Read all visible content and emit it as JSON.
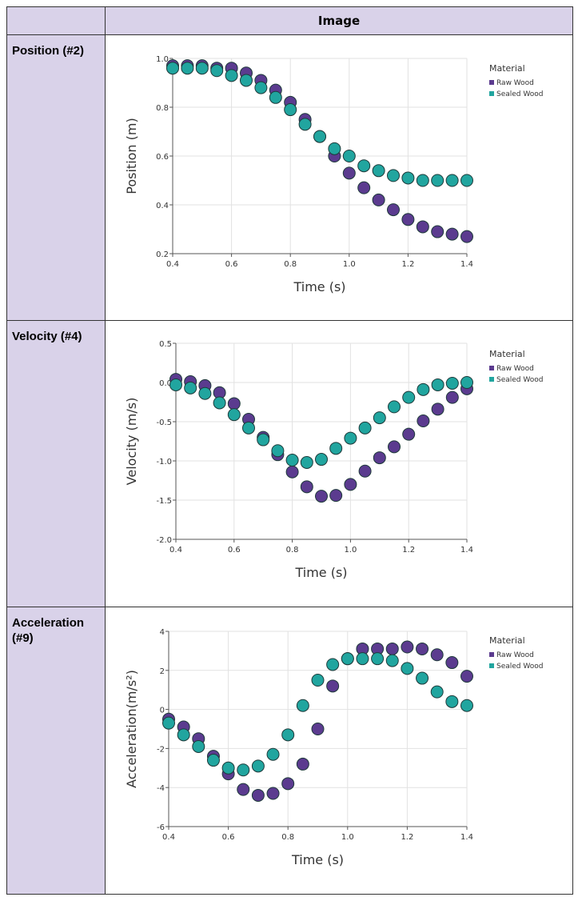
{
  "table": {
    "header": "Image",
    "rows": [
      {
        "label": "Position (#2)",
        "chart": {
          "type": "scatter",
          "x_label": "Time (s)",
          "y_label": "Position (m)",
          "legend_title": "Material",
          "grid": true,
          "x": [
            0.4,
            0.45,
            0.5,
            0.55,
            0.6,
            0.65,
            0.7,
            0.75,
            0.8,
            0.85,
            0.9,
            0.95,
            1.0,
            1.05,
            1.1,
            1.15,
            1.2,
            1.25,
            1.3,
            1.35,
            1.4
          ],
          "xlim": [
            0.4,
            1.4
          ],
          "xticks": [
            0.4,
            0.6,
            0.8,
            {
              "value": 1,
              "label": "1.0"
            },
            1.2,
            1.4
          ],
          "ylim": [
            0.2,
            1.0
          ],
          "yticks": [
            0.2,
            0.4,
            0.6,
            0.8,
            {
              "value": 1,
              "label": "1.0"
            }
          ],
          "series": [
            {
              "name": "Raw Wood",
              "color": "#5b3b8f",
              "values": [
                0.97,
                0.97,
                0.97,
                0.96,
                0.96,
                0.94,
                0.91,
                0.87,
                0.82,
                0.75,
                0.68,
                0.6,
                0.53,
                0.47,
                0.42,
                0.38,
                0.34,
                0.31,
                0.29,
                0.28,
                0.27
              ]
            },
            {
              "name": "Sealed Wood",
              "color": "#21a59f",
              "values": [
                0.96,
                0.96,
                0.96,
                0.95,
                0.93,
                0.91,
                0.88,
                0.84,
                0.79,
                0.73,
                0.68,
                0.63,
                0.6,
                0.56,
                0.54,
                0.52,
                0.51,
                0.5,
                0.5,
                0.5,
                0.5
              ]
            }
          ]
        }
      },
      {
        "label": "Velocity (#4)",
        "chart": {
          "type": "scatter",
          "x_label": "Time (s)",
          "y_label": "Velocity (m/s)",
          "legend_title": "Material",
          "grid": true,
          "x": [
            0.4,
            0.45,
            0.5,
            0.55,
            0.6,
            0.65,
            0.7,
            0.75,
            0.8,
            0.85,
            0.9,
            0.95,
            1.0,
            1.05,
            1.1,
            1.15,
            1.2,
            1.25,
            1.3,
            1.35,
            1.4
          ],
          "xlim": [
            0.4,
            1.4
          ],
          "xticks": [
            0.4,
            0.6,
            0.8,
            {
              "value": 1,
              "label": "1.0"
            },
            1.2,
            1.4
          ],
          "ylim": [
            -2.0,
            0.5
          ],
          "yticks": [
            {
              "value": -2,
              "label": "-2.0"
            },
            -1.5,
            {
              "value": -1,
              "label": "-1.0"
            },
            -0.5,
            {
              "value": 0,
              "label": "0.0"
            },
            0.5
          ],
          "series": [
            {
              "name": "Raw Wood",
              "color": "#5b3b8f",
              "values": [
                0.04,
                0.01,
                -0.04,
                -0.13,
                -0.27,
                -0.47,
                -0.7,
                -0.92,
                -1.14,
                -1.33,
                -1.45,
                -1.44,
                -1.3,
                -1.13,
                -0.96,
                -0.82,
                -0.66,
                -0.49,
                -0.34,
                -0.19,
                -0.08
              ]
            },
            {
              "name": "Sealed Wood",
              "color": "#21a59f",
              "values": [
                -0.03,
                -0.07,
                -0.14,
                -0.26,
                -0.41,
                -0.58,
                -0.73,
                -0.87,
                -0.99,
                -1.02,
                -0.98,
                -0.84,
                -0.71,
                -0.58,
                -0.45,
                -0.31,
                -0.19,
                -0.09,
                -0.03,
                -0.01,
                0.0
              ]
            }
          ]
        }
      },
      {
        "label": "Acceleration (#9)",
        "chart": {
          "type": "scatter",
          "x_label": "Time (s)",
          "y_label": "Acceleration(m/s²)",
          "legend_title": "Material",
          "grid": true,
          "x": [
            0.4,
            0.45,
            0.5,
            0.55,
            0.6,
            0.65,
            0.7,
            0.75,
            0.8,
            0.85,
            0.9,
            0.95,
            1.0,
            1.05,
            1.1,
            1.15,
            1.2,
            1.25,
            1.3,
            1.35,
            1.4
          ],
          "xlim": [
            0.4,
            1.4
          ],
          "xticks": [
            0.4,
            0.6,
            0.8,
            {
              "value": 1,
              "label": "1.0"
            },
            1.2,
            1.4
          ],
          "ylim": [
            -6,
            4
          ],
          "yticks": [
            -6,
            -4,
            -2,
            0,
            2,
            4
          ],
          "series": [
            {
              "name": "Raw Wood",
              "color": "#5b3b8f",
              "values": [
                -0.5,
                -0.9,
                -1.5,
                -2.4,
                -3.3,
                -4.1,
                -4.4,
                -4.3,
                -3.8,
                -2.8,
                -1.0,
                1.2,
                2.6,
                3.1,
                3.1,
                3.1,
                3.2,
                3.1,
                2.8,
                2.4,
                1.7
              ]
            },
            {
              "name": "Sealed Wood",
              "color": "#21a59f",
              "values": [
                -0.7,
                -1.3,
                -1.9,
                -2.6,
                -3.0,
                -3.1,
                -2.9,
                -2.3,
                -1.3,
                0.2,
                1.5,
                2.3,
                2.6,
                2.6,
                2.6,
                2.5,
                2.1,
                1.6,
                0.9,
                0.4,
                0.2
              ]
            }
          ]
        }
      }
    ]
  }
}
